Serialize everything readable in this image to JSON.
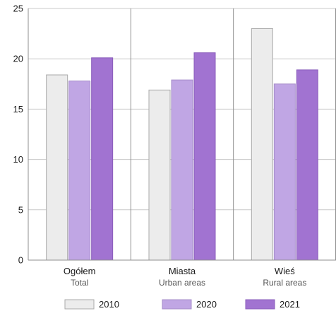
{
  "chart_data": {
    "type": "bar",
    "categories": [
      {
        "label": "Ogółem",
        "sublabel": "Total"
      },
      {
        "label": "Miasta",
        "sublabel": "Urban areas"
      },
      {
        "label": "Wieś",
        "sublabel": "Rural areas"
      }
    ],
    "series": [
      {
        "name": "2010",
        "color": "#ececec",
        "stroke": "#aaaaaa",
        "values": [
          18.4,
          16.9,
          23.0
        ]
      },
      {
        "name": "2020",
        "color": "#c0a6e4",
        "stroke": "#a58cc9",
        "values": [
          17.8,
          17.9,
          17.5
        ]
      },
      {
        "name": "2021",
        "color": "#a173d1",
        "stroke": "#8a5dbb",
        "values": [
          20.1,
          20.6,
          18.9
        ]
      }
    ],
    "yticks": [
      0,
      5,
      10,
      15,
      20,
      25
    ],
    "ylim": [
      0,
      25
    ],
    "grid": true,
    "legend_position": "bottom"
  }
}
